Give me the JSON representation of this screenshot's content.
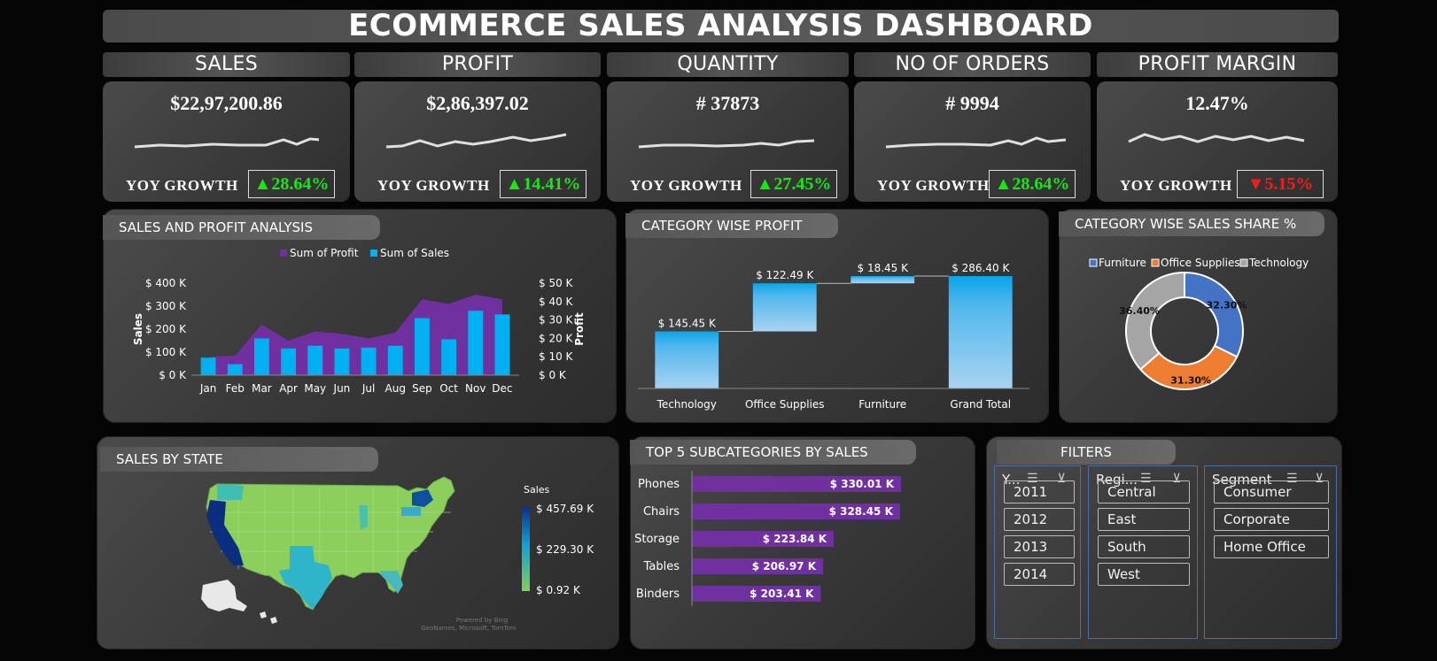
{
  "title": "ECOMMERCE SALES ANALYSIS DASHBOARD",
  "kpis": [
    {
      "label": "SALES",
      "value": "$22,97,200.86",
      "yoy_label": "YOY GROWTH",
      "yoy": "▲28.64%",
      "trend": "up"
    },
    {
      "label": "PROFIT",
      "value": "$2,86,397.02",
      "yoy_label": "YOY GROWTH",
      "yoy": "▲14.41%",
      "trend": "up"
    },
    {
      "label": "QUANTITY",
      "value": "# 37873",
      "yoy_label": "YOY GROWTH",
      "yoy": "▲27.45%",
      "trend": "up"
    },
    {
      "label": "NO OF ORDERS",
      "value": "# 9994",
      "yoy_label": "YOY GROWTH",
      "yoy": "▲28.64%",
      "trend": "up"
    },
    {
      "label": "PROFIT MARGIN",
      "value": "12.47%",
      "yoy_label": "YOY GROWTH",
      "yoy": "▼5.15%",
      "trend": "down"
    }
  ],
  "colors": {
    "profit": "#7030a0",
    "sales": "#00b0f0",
    "furniture": "#4472c4",
    "office": "#ed7d31",
    "technology": "#a5a5a5",
    "bar": "#7030a0",
    "up": "#19e619",
    "down": "#ff1a1a"
  },
  "sections": {
    "sales_profit": "SALES AND PROFIT ANALYSIS",
    "category_profit": "CATEGORY WISE PROFIT",
    "category_share": "CATEGORY WISE SALES SHARE %",
    "sales_by_state": "SALES BY STATE",
    "top5": "TOP 5 SUBCATEGORIES BY SALES",
    "filters": "FILTERS"
  },
  "chart_data": [
    {
      "type": "bar",
      "title": "",
      "categories": [
        "Jan",
        "Feb",
        "Mar",
        "Apr",
        "May",
        "Jun",
        "Jul",
        "Aug",
        "Sep",
        "Oct",
        "Nov",
        "Dec"
      ],
      "series": [
        {
          "name": "Sum of Profit",
          "type": "area",
          "axis": "left",
          "values": [
            80000,
            85000,
            220000,
            150000,
            190000,
            180000,
            160000,
            185000,
            330000,
            310000,
            350000,
            330000
          ]
        },
        {
          "name": "Sum of Sales",
          "type": "bar",
          "axis": "right",
          "values": [
            9500,
            6000,
            20000,
            14500,
            16000,
            14500,
            15000,
            16000,
            31000,
            19500,
            35000,
            33000
          ]
        }
      ],
      "ylabel": "Sales",
      "y2label": "Profit",
      "yticks": [
        "$ 0 K",
        "$ 100 K",
        "$ 200 K",
        "$ 300 K",
        "$ 400 K"
      ],
      "y2ticks": [
        "$ 0 K",
        "$ 10 K",
        "$ 20 K",
        "$ 30 K",
        "$ 40 K",
        "$ 50 K"
      ],
      "ylim": [
        0,
        400000
      ],
      "y2lim": [
        0,
        50000
      ],
      "legend": "top"
    },
    {
      "type": "bar",
      "subtype": "waterfall",
      "categories": [
        "Technology",
        "Office Supplies",
        "Furniture",
        "Grand Total"
      ],
      "values": [
        145.45,
        122.49,
        18.45,
        286.4
      ],
      "labels": [
        "$ 145.45 K",
        "$ 122.49 K",
        "$ 18.45 K",
        "$ 286.40 K"
      ],
      "ylim": [
        0,
        300
      ]
    },
    {
      "type": "pie",
      "subtype": "donut",
      "categories": [
        "Furniture",
        "Office Supplies",
        "Technology"
      ],
      "values": [
        32.3,
        31.3,
        36.4
      ],
      "labels": [
        "32.30%",
        "31.30%",
        "36.40%"
      ],
      "legend": "top"
    },
    {
      "type": "bar",
      "orientation": "horizontal",
      "categories": [
        "Phones",
        "Chairs",
        "Storage",
        "Tables",
        "Binders"
      ],
      "values": [
        330.01,
        328.45,
        223.84,
        206.97,
        203.41
      ],
      "labels": [
        "$ 330.01 K",
        "$ 328.45 K",
        "$ 223.84 K",
        "$ 206.97 K",
        "$ 203.41 K"
      ]
    }
  ],
  "map": {
    "legend_title": "Sales",
    "legend_max": "$ 457.69 K",
    "legend_mid": "$ 229.30 K",
    "legend_min": "$ 0.92 K",
    "credit_1": "Powered by Bing",
    "credit_2": "GeoNames, Microsoft, TomTom"
  },
  "filters": {
    "year": {
      "label": "Y...",
      "items": [
        "2011",
        "2012",
        "2013",
        "2014"
      ]
    },
    "region": {
      "label": "Regi...",
      "items": [
        "Central",
        "East",
        "South",
        "West"
      ]
    },
    "segment": {
      "label": "Segment",
      "items": [
        "Consumer",
        "Corporate",
        "Home Office"
      ]
    }
  }
}
